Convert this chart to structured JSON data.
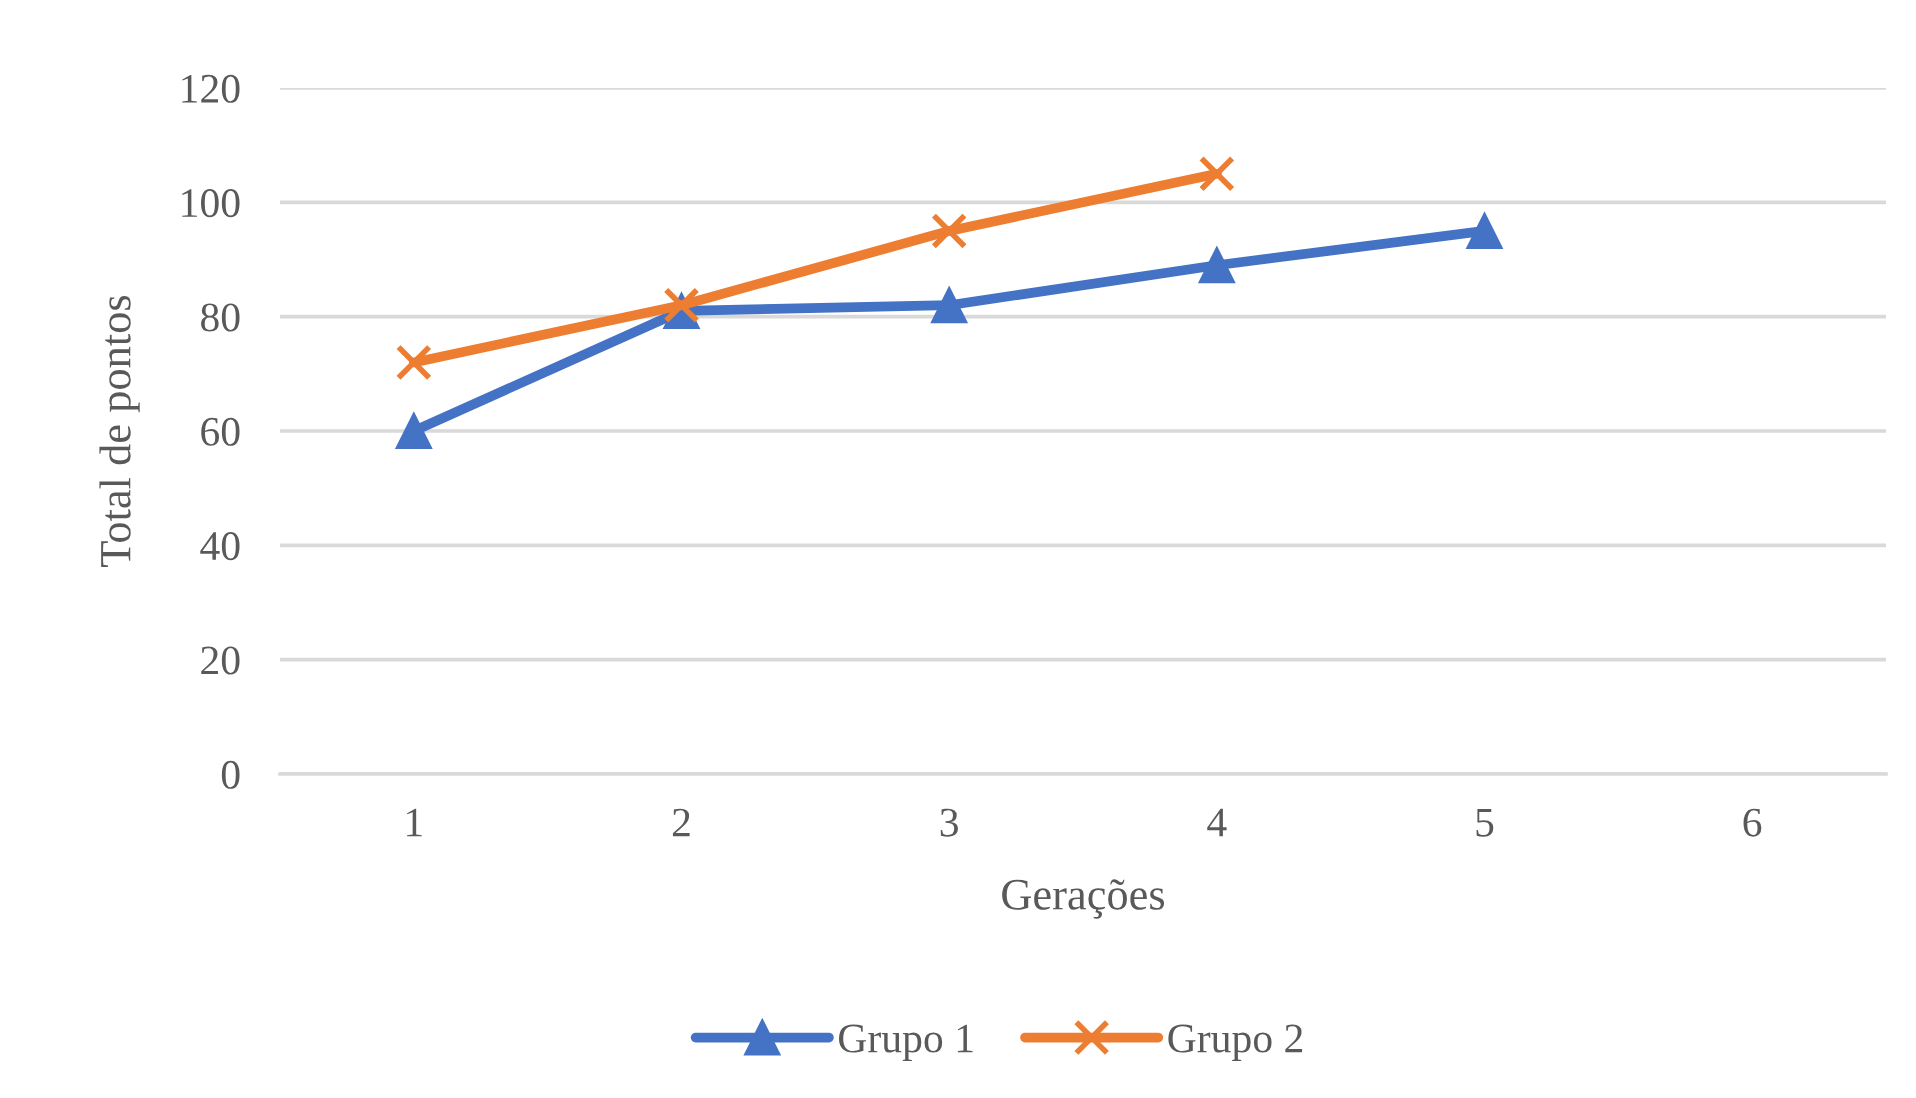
{
  "chart_data": {
    "type": "line",
    "xlabel": "Gerações",
    "ylabel": "Total de pontos",
    "categories": [
      "1",
      "2",
      "3",
      "4",
      "5",
      "6"
    ],
    "series": [
      {
        "name": "Grupo 1",
        "color": "#4472c4",
        "marker": "triangle",
        "values": [
          60,
          81,
          82,
          89,
          95,
          null
        ]
      },
      {
        "name": "Grupo 2",
        "color": "#ed7d31",
        "marker": "cross",
        "values": [
          72,
          82,
          95,
          105,
          null,
          null
        ]
      }
    ],
    "ylim": [
      0,
      120
    ],
    "yticks": [
      0,
      20,
      40,
      60,
      80,
      100,
      120
    ],
    "grid": "y",
    "legend": "bottom",
    "line_style": "solid"
  }
}
